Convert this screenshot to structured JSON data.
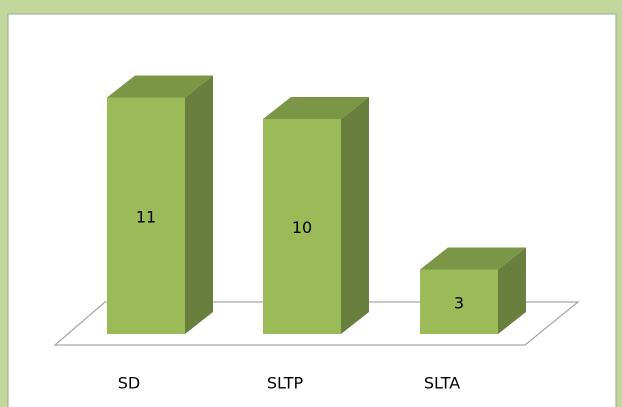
{
  "chart_data": {
    "type": "bar3d",
    "categories": [
      "SD",
      "SLTP",
      "SLTA"
    ],
    "values": [
      11,
      10,
      3
    ],
    "color": "#9bbb59"
  }
}
